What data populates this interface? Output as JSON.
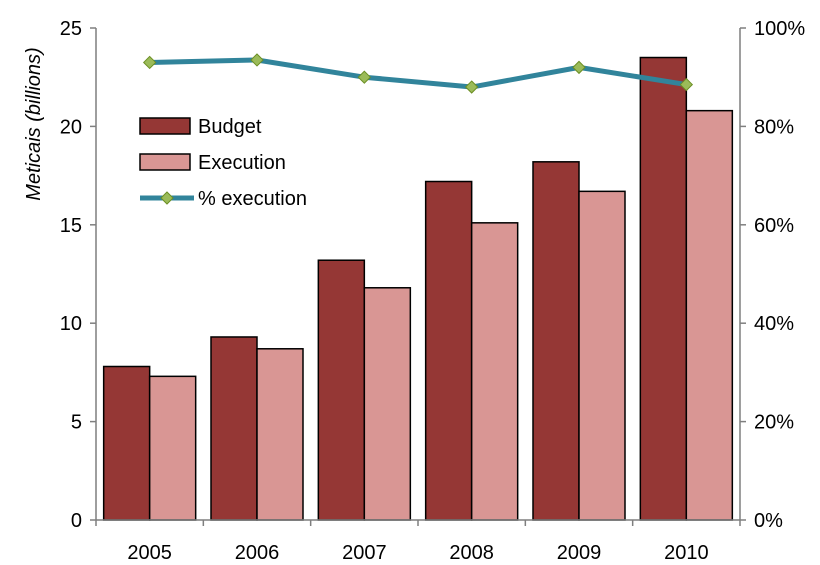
{
  "chart_data": {
    "type": "bar",
    "categories": [
      "2005",
      "2006",
      "2007",
      "2008",
      "2009",
      "2010"
    ],
    "series": [
      {
        "name": "Budget",
        "type": "bar",
        "axis": "left",
        "color": "#953735",
        "values": [
          7.8,
          9.3,
          13.2,
          17.2,
          18.2,
          23.5
        ]
      },
      {
        "name": "Execution",
        "type": "bar",
        "axis": "left",
        "color": "#d99694",
        "values": [
          7.3,
          8.7,
          11.8,
          15.1,
          16.7,
          20.8
        ]
      },
      {
        "name": "% execution",
        "type": "line",
        "axis": "right",
        "color": "#31849b",
        "marker_color": "#9bbb59",
        "values": [
          0.93,
          0.935,
          0.9,
          0.88,
          0.92,
          0.885
        ]
      }
    ],
    "ylabel": "Meticais (billions)",
    "ylim": [
      0,
      25
    ],
    "y_ticks": [
      "0",
      "5",
      "10",
      "15",
      "20",
      "25"
    ],
    "y2lim": [
      0,
      1
    ],
    "y2_ticks": [
      "0%",
      "20%",
      "40%",
      "60%",
      "80%",
      "100%"
    ],
    "grid": false,
    "legend_position": "top-left"
  }
}
